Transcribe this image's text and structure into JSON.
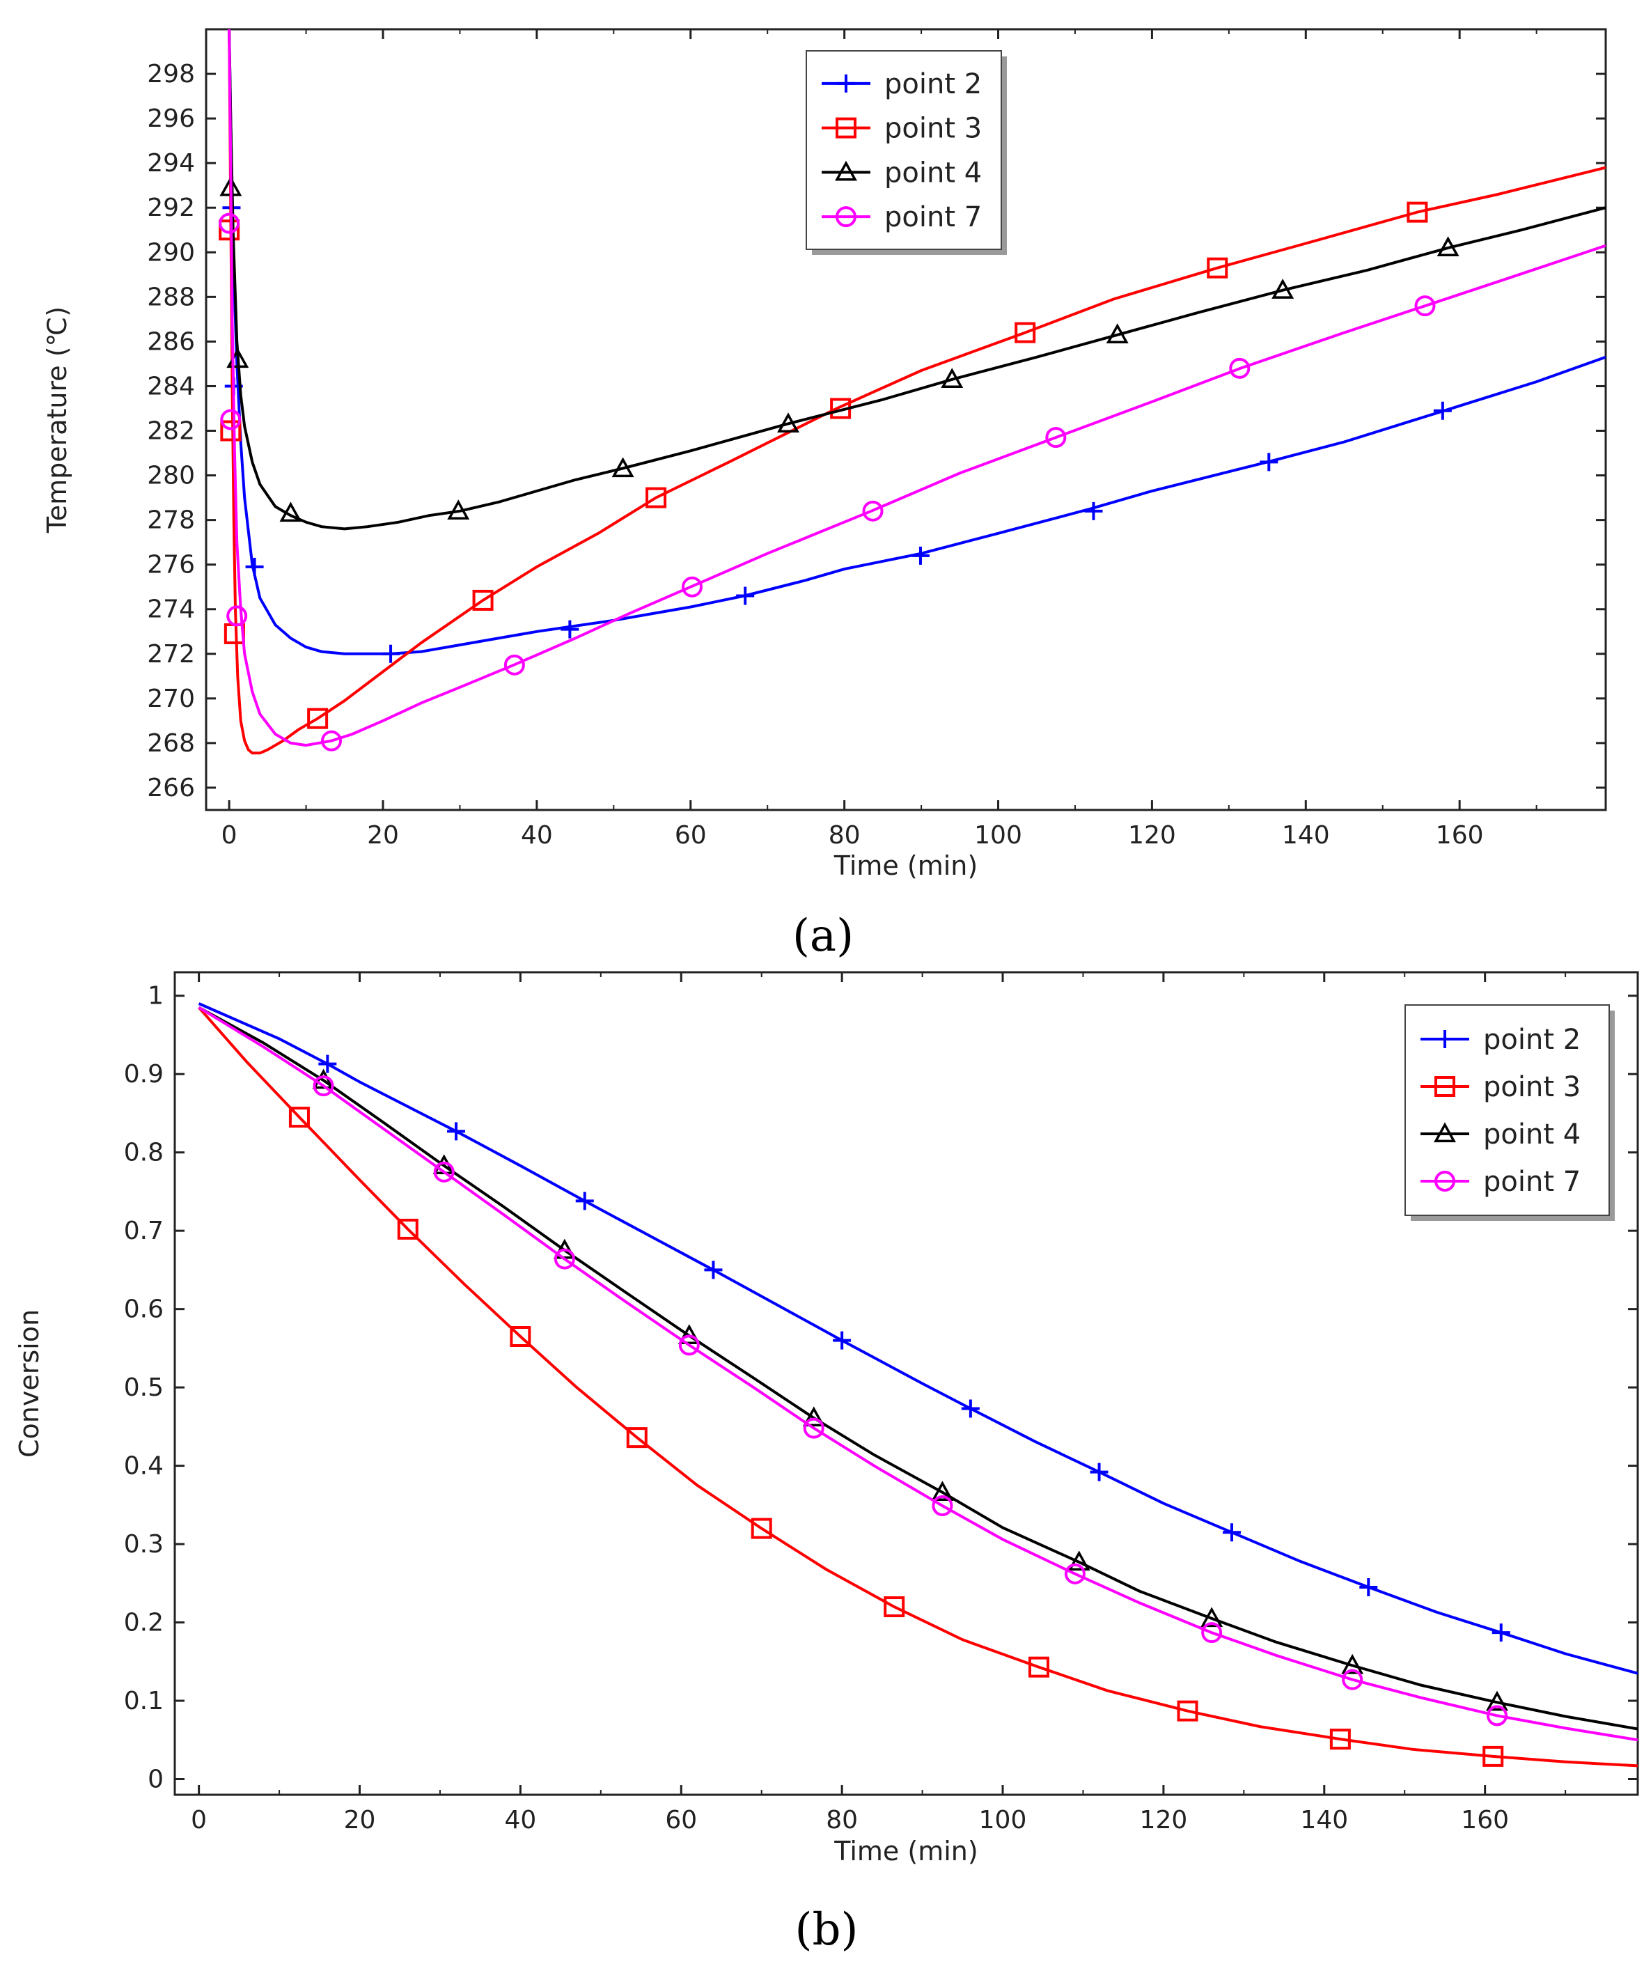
{
  "colors": {
    "point_2": "#0000ff",
    "point_3": "#ff0000",
    "point_4": "#000000",
    "point_7": "#ff00ff"
  },
  "markers": {
    "point_2": "plus-icon",
    "point_3": "square-icon",
    "point_4": "triangle-icon",
    "point_7": "circle-icon"
  },
  "chart_data": [
    {
      "type": "line",
      "panel_label": "(a)",
      "xlabel": "Time (min)",
      "ylabel": "Temperature (℃)",
      "xlim": [
        -3,
        179
      ],
      "ylim": [
        265,
        300
      ],
      "xticks": [
        0,
        20,
        40,
        60,
        80,
        100,
        120,
        140,
        160
      ],
      "yticks": [
        266,
        268,
        270,
        272,
        274,
        276,
        278,
        280,
        282,
        284,
        286,
        288,
        290,
        292,
        294,
        296,
        298
      ],
      "legend_position": "top-center",
      "series": [
        {
          "name": "point 2",
          "key": "point_2",
          "x": [
            0,
            0.3,
            0.6,
            1,
            1.5,
            2,
            3,
            4,
            6,
            8,
            10,
            12,
            15,
            18,
            21,
            25,
            30,
            35,
            40,
            44,
            50,
            55,
            60,
            67,
            75,
            80,
            90,
            100,
            112,
            120,
            135,
            145,
            158,
            170,
            179
          ],
          "y": [
            300,
            294,
            289,
            285,
            281.5,
            279,
            276,
            274.5,
            273.3,
            272.7,
            272.3,
            272.1,
            272.0,
            272.0,
            272.0,
            272.1,
            272.4,
            272.7,
            273.0,
            273.2,
            273.5,
            273.8,
            274.1,
            274.6,
            275.3,
            275.8,
            276.5,
            277.4,
            278.5,
            279.3,
            280.6,
            281.5,
            282.9,
            284.2,
            285.3
          ],
          "markers": [
            [
              0.3,
              292
            ],
            [
              0.6,
              284
            ],
            [
              3.3,
              275.9
            ],
            [
              21,
              272.0
            ],
            [
              44.3,
              273.1
            ],
            [
              67.1,
              274.6
            ],
            [
              89.9,
              276.4
            ],
            [
              112.4,
              278.4
            ],
            [
              135.2,
              280.6
            ],
            [
              157.8,
              282.9
            ]
          ]
        },
        {
          "name": "point 3",
          "key": "point_3",
          "x": [
            0,
            0.2,
            0.4,
            0.6,
            0.8,
            1.1,
            1.5,
            2,
            2.5,
            3,
            4,
            5,
            7,
            9,
            11.5,
            15,
            20,
            25,
            33,
            40,
            48,
            55.5,
            65,
            72,
            79,
            90,
            103.5,
            115,
            128.5,
            140,
            154.5,
            165,
            179
          ],
          "y": [
            300,
            292,
            284,
            278,
            274,
            271,
            269,
            268.1,
            267.7,
            267.55,
            267.55,
            267.7,
            268.1,
            268.6,
            269.1,
            269.9,
            271.2,
            272.5,
            274.4,
            275.9,
            277.4,
            279.0,
            280.6,
            281.8,
            283.0,
            284.7,
            286.4,
            287.9,
            289.3,
            290.4,
            291.8,
            292.6,
            293.8
          ],
          "markers": [
            [
              0,
              291.0
            ],
            [
              0.2,
              282.0
            ],
            [
              0.7,
              272.9
            ],
            [
              11.5,
              269.1
            ],
            [
              33,
              274.4
            ],
            [
              55.5,
              279.0
            ],
            [
              79.5,
              283.0
            ],
            [
              103.5,
              286.4
            ],
            [
              128.5,
              289.3
            ],
            [
              154.5,
              291.8
            ]
          ]
        },
        {
          "name": "point 4",
          "key": "point_4",
          "x": [
            0,
            0.2,
            0.5,
            1,
            1.5,
            2,
            3,
            4,
            6,
            8,
            10,
            12,
            15,
            18,
            22,
            26,
            30,
            35,
            40,
            45,
            51,
            60,
            72.5,
            85,
            94,
            105,
            115.5,
            126,
            137,
            148,
            158.5,
            168,
            179
          ],
          "y": [
            300,
            296,
            291,
            286,
            283.6,
            282.2,
            280.6,
            279.6,
            278.6,
            278.2,
            277.9,
            277.7,
            277.6,
            277.7,
            277.9,
            278.2,
            278.4,
            278.8,
            279.3,
            279.8,
            280.3,
            281.1,
            282.3,
            283.4,
            284.3,
            285.3,
            286.3,
            287.3,
            288.3,
            289.2,
            290.2,
            291.0,
            292.0
          ],
          "markers": [
            [
              0.2,
              292.9
            ],
            [
              1.1,
              285.2
            ],
            [
              8,
              278.3
            ],
            [
              29.8,
              278.4
            ],
            [
              51.2,
              280.3
            ],
            [
              72.7,
              282.3
            ],
            [
              94,
              284.3
            ],
            [
              115.5,
              286.3
            ],
            [
              137,
              288.3
            ],
            [
              158.5,
              290.2
            ]
          ]
        },
        {
          "name": "point 7",
          "key": "point_7",
          "x": [
            0,
            0.2,
            0.4,
            0.7,
            1,
            1.5,
            2,
            3,
            4,
            6,
            8,
            10,
            13.3,
            16,
            20,
            25,
            30,
            37,
            45,
            52,
            60,
            70,
            83.5,
            95,
            107.5,
            120,
            131.5,
            145,
            155.5,
            166,
            179
          ],
          "y": [
            300,
            294,
            287,
            281,
            277,
            274,
            272,
            270.3,
            269.3,
            268.4,
            268.0,
            267.9,
            268.1,
            268.4,
            269.0,
            269.8,
            270.5,
            271.5,
            272.7,
            273.8,
            275.0,
            276.5,
            278.4,
            280.1,
            281.7,
            283.3,
            284.8,
            286.4,
            287.6,
            288.8,
            290.3
          ],
          "markers": [
            [
              0,
              291.3
            ],
            [
              0.2,
              282.5
            ],
            [
              1,
              273.7
            ],
            [
              13.3,
              268.1
            ],
            [
              37.1,
              271.5
            ],
            [
              60.2,
              275.0
            ],
            [
              83.7,
              278.4
            ],
            [
              107.5,
              281.7
            ],
            [
              131.4,
              284.8
            ],
            [
              155.5,
              287.6
            ]
          ]
        }
      ]
    },
    {
      "type": "line",
      "panel_label": "(b)",
      "xlabel": "Time (min)",
      "ylabel": "Conversion",
      "xlim": [
        -3,
        179
      ],
      "ylim": [
        -0.02,
        1.03
      ],
      "xticks": [
        0,
        20,
        40,
        60,
        80,
        100,
        120,
        140,
        160
      ],
      "yticks": [
        0,
        0.1,
        0.2,
        0.3,
        0.4,
        0.5,
        0.6,
        0.7,
        0.8,
        0.9,
        1
      ],
      "legend_position": "top-right",
      "series": [
        {
          "name": "point 2",
          "key": "point_2",
          "x": [
            0,
            10,
            16,
            20,
            32,
            40,
            48,
            60,
            64,
            72,
            80,
            90,
            96,
            104,
            112,
            120,
            128.5,
            137,
            145.5,
            154,
            162,
            170,
            179
          ],
          "y": [
            0.99,
            0.945,
            0.913,
            0.89,
            0.827,
            0.783,
            0.738,
            0.672,
            0.65,
            0.605,
            0.56,
            0.505,
            0.473,
            0.431,
            0.392,
            0.352,
            0.315,
            0.278,
            0.245,
            0.213,
            0.187,
            0.16,
            0.135
          ],
          "markers": [
            [
              16,
              0.913
            ],
            [
              32,
              0.827
            ],
            [
              48,
              0.738
            ],
            [
              64,
              0.65
            ],
            [
              80,
              0.56
            ],
            [
              96,
              0.473
            ],
            [
              112,
              0.392
            ],
            [
              128.5,
              0.315
            ],
            [
              145.5,
              0.245
            ],
            [
              162,
              0.187
            ]
          ]
        },
        {
          "name": "point 3",
          "key": "point_3",
          "x": [
            0,
            6,
            12.5,
            20,
            26,
            33,
            40,
            47,
            54.5,
            62,
            70,
            78,
            86.5,
            95,
            104.5,
            113,
            123,
            132,
            142,
            151,
            161,
            170,
            179
          ],
          "y": [
            0.985,
            0.915,
            0.845,
            0.765,
            0.702,
            0.632,
            0.565,
            0.5,
            0.436,
            0.375,
            0.32,
            0.268,
            0.22,
            0.178,
            0.143,
            0.113,
            0.087,
            0.067,
            0.051,
            0.038,
            0.029,
            0.022,
            0.017
          ],
          "markers": [
            [
              12.5,
              0.845
            ],
            [
              26,
              0.702
            ],
            [
              40,
              0.565
            ],
            [
              54.5,
              0.436
            ],
            [
              70,
              0.32
            ],
            [
              86.5,
              0.22
            ],
            [
              104.5,
              0.143
            ],
            [
              123,
              0.087
            ],
            [
              142,
              0.051
            ],
            [
              161,
              0.029
            ]
          ]
        },
        {
          "name": "point 4",
          "key": "point_4",
          "x": [
            0,
            8,
            15.5,
            23,
            30.5,
            38,
            45.5,
            53,
            61,
            69,
            76.5,
            84,
            92.5,
            100,
            109.5,
            117,
            126,
            134,
            143.5,
            152,
            161.5,
            170,
            179
          ],
          "y": [
            0.985,
            0.94,
            0.892,
            0.838,
            0.783,
            0.73,
            0.675,
            0.622,
            0.566,
            0.512,
            0.461,
            0.414,
            0.366,
            0.321,
            0.277,
            0.24,
            0.205,
            0.175,
            0.145,
            0.12,
            0.098,
            0.08,
            0.064
          ],
          "markers": [
            [
              15.5,
              0.892
            ],
            [
              30.5,
              0.783
            ],
            [
              45.5,
              0.675
            ],
            [
              61,
              0.566
            ],
            [
              76.5,
              0.461
            ],
            [
              92.5,
              0.366
            ],
            [
              109.5,
              0.277
            ],
            [
              126,
              0.205
            ],
            [
              143.5,
              0.145
            ],
            [
              161.5,
              0.098
            ]
          ]
        },
        {
          "name": "point 7",
          "key": "point_7",
          "x": [
            0,
            8,
            15.5,
            23,
            30.5,
            38,
            45.5,
            53,
            61,
            69,
            76.5,
            84,
            92.5,
            100,
            109,
            117,
            126,
            134,
            143.5,
            152,
            161.5,
            170,
            179
          ],
          "y": [
            0.985,
            0.935,
            0.885,
            0.83,
            0.775,
            0.72,
            0.664,
            0.61,
            0.554,
            0.5,
            0.448,
            0.4,
            0.349,
            0.306,
            0.262,
            0.225,
            0.187,
            0.158,
            0.127,
            0.104,
            0.081,
            0.065,
            0.05
          ],
          "markers": [
            [
              15.5,
              0.885
            ],
            [
              30.5,
              0.775
            ],
            [
              45.5,
              0.664
            ],
            [
              61,
              0.554
            ],
            [
              76.5,
              0.448
            ],
            [
              92.5,
              0.349
            ],
            [
              109,
              0.262
            ],
            [
              126,
              0.187
            ],
            [
              143.5,
              0.127
            ],
            [
              161.5,
              0.081
            ]
          ]
        }
      ]
    }
  ]
}
